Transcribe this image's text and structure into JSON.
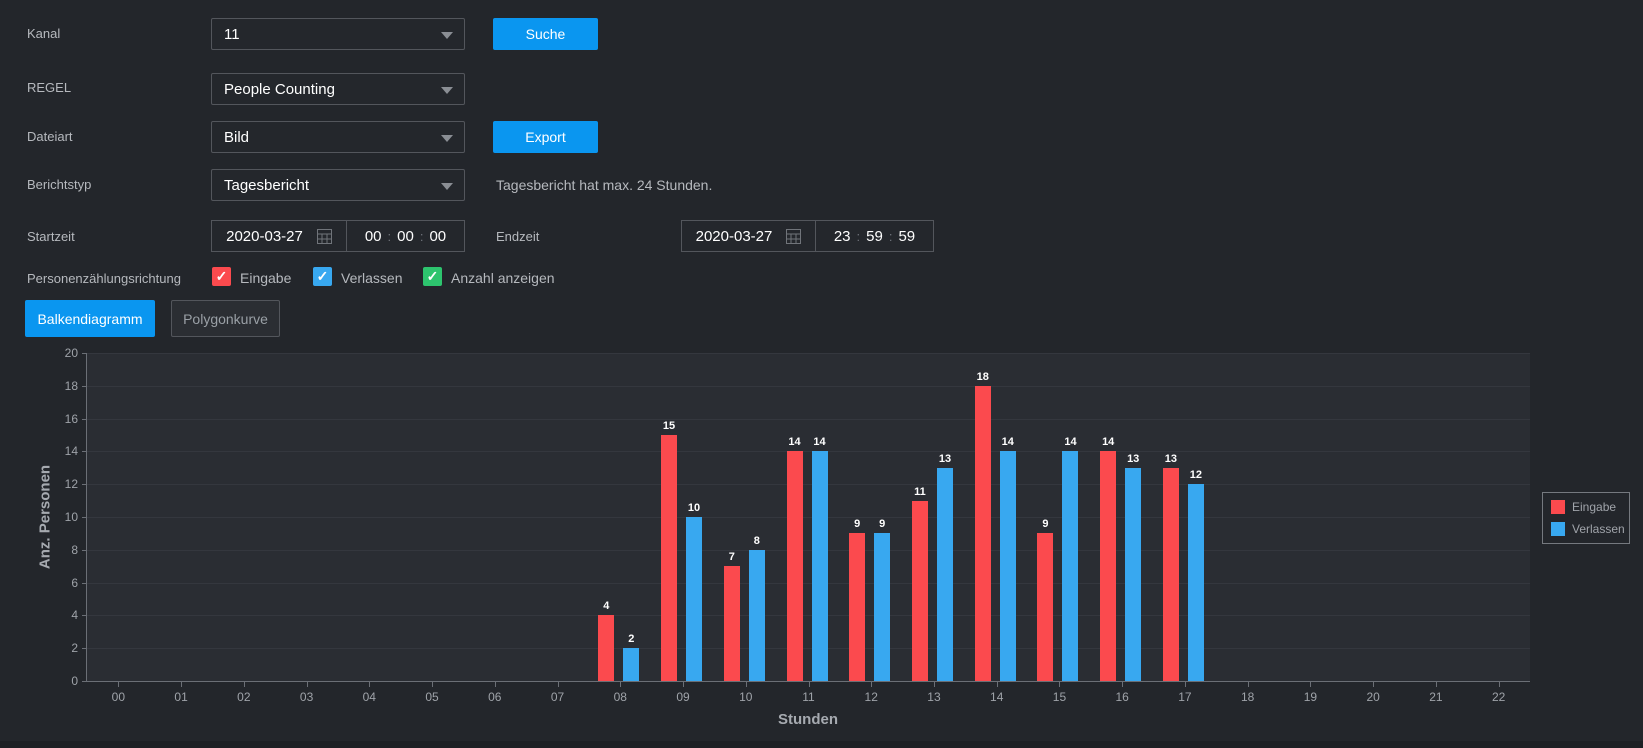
{
  "colors": {
    "accent": "#0a96f0",
    "bar_red": "#fb4a4e",
    "bar_blue": "#38a8f0",
    "check_green": "#2dc46e"
  },
  "filters": {
    "channel_label": "Kanal",
    "channel_value": "11",
    "rule_label": "REGEL",
    "rule_value": "People Counting",
    "file_type_label": "Dateiart",
    "file_type_value": "Bild",
    "report_type_label": "Berichtstyp",
    "report_type_value": "Tagesbericht",
    "report_hint": "Tagesbericht hat max. 24 Stunden.",
    "search_button": "Suche",
    "export_button": "Export"
  },
  "time_range": {
    "start_label": "Startzeit",
    "start_date": "2020-03-27",
    "start_h": "00",
    "start_m": "00",
    "start_s": "00",
    "end_label": "Endzeit",
    "end_date": "2020-03-27",
    "end_h": "23",
    "end_m": "59",
    "end_s": "59",
    "separator": ":"
  },
  "direction": {
    "label": "Personenzählungsrichtung",
    "enter_label": "Eingabe",
    "leave_label": "Verlassen",
    "show_count_label": "Anzahl anzeigen",
    "enter_checked": true,
    "leave_checked": true,
    "show_count_checked": true,
    "check_glyph": "✓"
  },
  "tabs": {
    "bar_chart": "Balkendiagramm",
    "polygon": "Polygonkurve"
  },
  "chart_data": {
    "type": "bar",
    "title": "",
    "xlabel": "Stunden",
    "ylabel": "Anz. Personen",
    "ylim": [
      0,
      20
    ],
    "ytick_step": 2,
    "grid": true,
    "legend_position": "right",
    "show_value_labels": true,
    "categories": [
      "00",
      "01",
      "02",
      "03",
      "04",
      "05",
      "06",
      "07",
      "08",
      "09",
      "10",
      "11",
      "12",
      "13",
      "14",
      "15",
      "16",
      "17",
      "18",
      "19",
      "20",
      "21",
      "22"
    ],
    "series": [
      {
        "name": "Eingabe",
        "color": "#fb4a4e",
        "values": [
          0,
          0,
          0,
          0,
          0,
          0,
          0,
          0,
          4,
          15,
          7,
          14,
          9,
          11,
          18,
          9,
          14,
          13,
          0,
          0,
          0,
          0,
          0
        ]
      },
      {
        "name": "Verlassen",
        "color": "#38a8f0",
        "values": [
          0,
          0,
          0,
          0,
          0,
          0,
          0,
          0,
          2,
          10,
          8,
          14,
          9,
          13,
          14,
          14,
          13,
          12,
          0,
          0,
          0,
          0,
          0
        ]
      }
    ]
  }
}
